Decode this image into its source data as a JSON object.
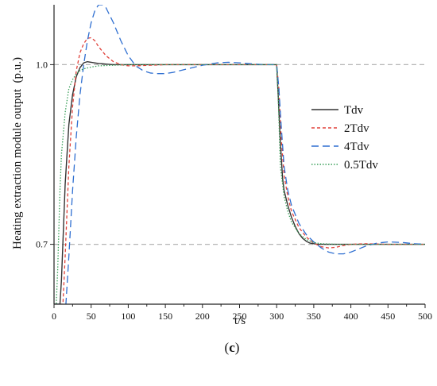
{
  "chart_data": {
    "type": "line",
    "title": "",
    "xlabel": "t/s",
    "ylabel": "Heating extraction module output  (p.u.)",
    "panel_label": "c",
    "xlim": [
      0,
      500
    ],
    "ylim": [
      0.6,
      1.1
    ],
    "x_ticks": [
      0,
      50,
      100,
      150,
      200,
      250,
      300,
      350,
      400,
      450,
      500
    ],
    "y_ticks": [
      1.0,
      0.7
    ],
    "y_tick_labels": [
      "1.0",
      "0.7"
    ],
    "reference_lines": [
      1.0,
      0.7
    ],
    "grid": false,
    "legend_position": "right",
    "series": [
      {
        "name": "Tdv",
        "color": "#333333",
        "dash": "solid",
        "x": [
          0,
          8,
          10,
          15,
          20,
          25,
          30,
          35,
          40,
          45,
          50,
          55,
          60,
          70,
          80,
          90,
          100,
          120,
          150,
          200,
          250,
          299,
          300,
          302,
          305,
          308,
          310,
          315,
          320,
          325,
          330,
          335,
          340,
          345,
          350,
          355,
          360,
          370,
          380,
          400,
          450,
          500
        ],
        "y": [
          0.6,
          0.6,
          0.64,
          0.8,
          0.9,
          0.95,
          0.98,
          0.995,
          1.003,
          1.005,
          1.004,
          1.003,
          1.002,
          1.001,
          1.0,
          1.0,
          1.0,
          1.0,
          1.0,
          1.0,
          1.0,
          1.0,
          1.0,
          0.95,
          0.87,
          0.81,
          0.79,
          0.765,
          0.745,
          0.73,
          0.718,
          0.71,
          0.705,
          0.702,
          0.701,
          0.7,
          0.7,
          0.7,
          0.7,
          0.7,
          0.7,
          0.7
        ]
      },
      {
        "name": "2Tdv",
        "color": "#e0413a",
        "dash": "4 3",
        "x": [
          0,
          12,
          15,
          20,
          25,
          30,
          35,
          40,
          45,
          50,
          55,
          60,
          70,
          80,
          90,
          100,
          110,
          130,
          150,
          200,
          250,
          300,
          303,
          306,
          310,
          315,
          320,
          330,
          340,
          350,
          360,
          370,
          380,
          390,
          400,
          420,
          450,
          500
        ],
        "y": [
          0.6,
          0.6,
          0.68,
          0.83,
          0.93,
          0.99,
          1.02,
          1.035,
          1.044,
          1.045,
          1.04,
          1.03,
          1.015,
          1.005,
          1.0,
          0.998,
          0.998,
          0.999,
          1.0,
          1.0,
          1.0,
          1.0,
          0.96,
          0.88,
          0.815,
          0.78,
          0.755,
          0.728,
          0.712,
          0.702,
          0.696,
          0.694,
          0.695,
          0.698,
          0.7,
          0.701,
          0.7,
          0.7
        ]
      },
      {
        "name": "4Tdv",
        "color": "#2f6fd1",
        "dash": "9 5",
        "x": [
          0,
          16,
          20,
          25,
          30,
          35,
          40,
          45,
          50,
          55,
          60,
          65,
          70,
          80,
          90,
          100,
          110,
          120,
          130,
          140,
          150,
          160,
          180,
          200,
          220,
          235,
          250,
          270,
          285,
          300,
          303,
          306,
          310,
          315,
          320,
          330,
          340,
          350,
          360,
          370,
          380,
          390,
          400,
          410,
          420,
          435,
          450,
          470,
          485,
          500
        ],
        "y": [
          0.6,
          0.6,
          0.68,
          0.79,
          0.88,
          0.95,
          1.0,
          1.04,
          1.07,
          1.09,
          1.1,
          1.1,
          1.095,
          1.07,
          1.04,
          1.015,
          0.998,
          0.99,
          0.986,
          0.985,
          0.985,
          0.987,
          0.993,
          0.999,
          1.003,
          1.004,
          1.003,
          1.001,
          1.0,
          1.0,
          0.96,
          0.9,
          0.83,
          0.79,
          0.765,
          0.735,
          0.716,
          0.704,
          0.694,
          0.687,
          0.684,
          0.684,
          0.687,
          0.692,
          0.697,
          0.702,
          0.704,
          0.703,
          0.701,
          0.7
        ]
      },
      {
        "name": "0.5Tdv",
        "color": "#3aa05a",
        "dash": "1.5 2",
        "x": [
          0,
          3,
          5,
          8,
          10,
          15,
          20,
          25,
          30,
          35,
          40,
          50,
          60,
          80,
          100,
          150,
          200,
          250,
          300,
          302,
          305,
          310,
          315,
          320,
          330,
          340,
          350,
          360,
          380,
          400,
          450,
          500
        ],
        "y": [
          0.6,
          0.6,
          0.66,
          0.79,
          0.85,
          0.92,
          0.96,
          0.975,
          0.985,
          0.99,
          0.993,
          0.996,
          0.998,
          0.999,
          1.0,
          1.0,
          1.0,
          1.0,
          1.0,
          0.95,
          0.83,
          0.78,
          0.755,
          0.737,
          0.718,
          0.708,
          0.703,
          0.701,
          0.7,
          0.7,
          0.7,
          0.7
        ]
      }
    ]
  }
}
